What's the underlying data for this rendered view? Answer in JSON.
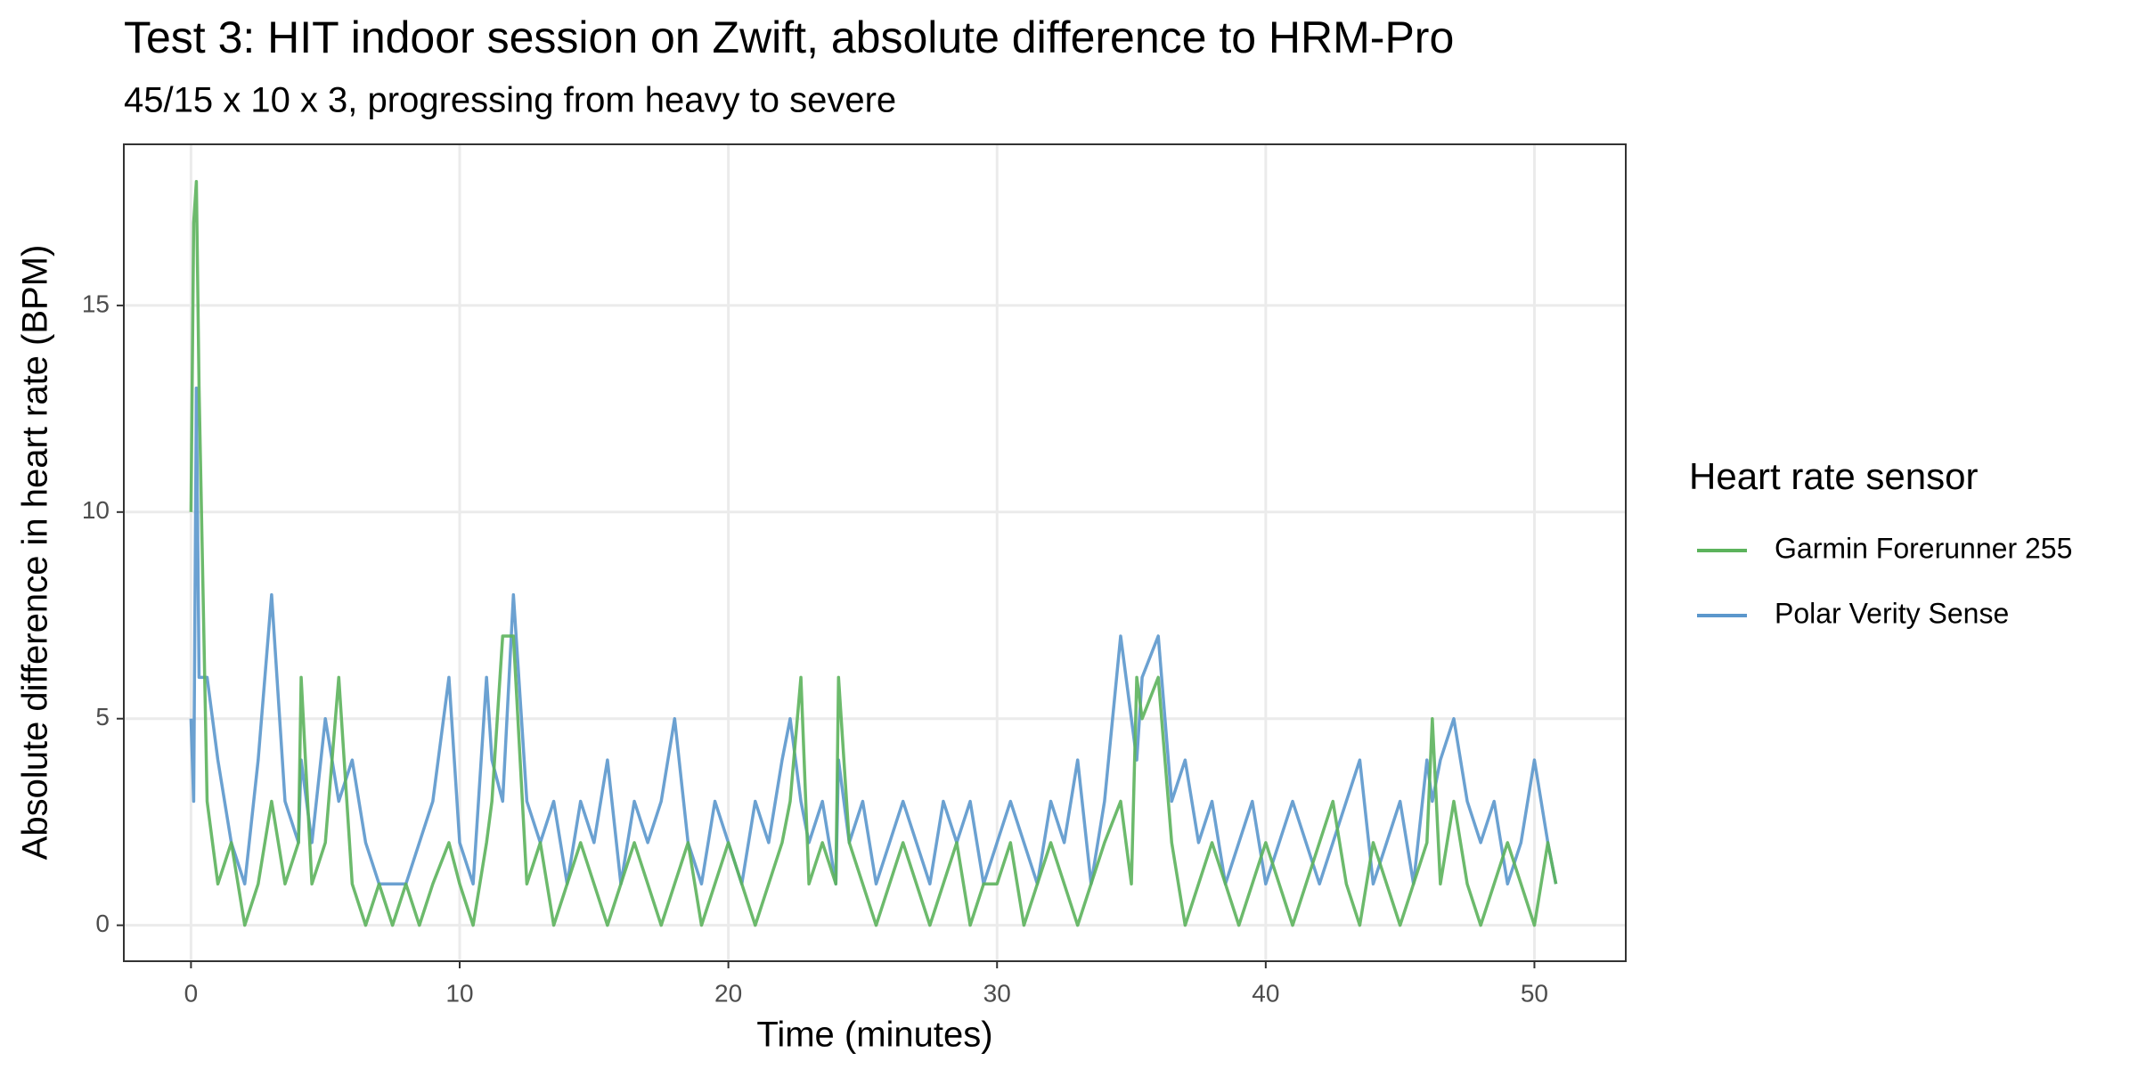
{
  "chart_data": {
    "type": "line",
    "title": "Test 3: HIT indoor session on Zwift, absolute difference to HRM-Pro",
    "subtitle": "45/15 x 10 x 3, progressing from heavy to severe",
    "x_label": "Time (minutes)",
    "y_label": "Absolute difference in heart rate (BPM)",
    "legend_title": "Heart rate sensor",
    "legend_position": "right",
    "grid": true,
    "xlim": [
      -2.5,
      53.4
    ],
    "xticks": [
      0,
      10,
      20,
      30,
      40,
      50
    ],
    "ylim": [
      -0.87,
      18.9
    ],
    "yticks": [
      0,
      5,
      10,
      15
    ],
    "x": [
      0,
      0.1,
      0.2,
      0.3,
      0.6,
      1,
      1.5,
      2,
      2.5,
      3,
      3.5,
      4,
      4.1,
      4.5,
      5,
      5.5,
      6,
      6.5,
      7,
      7.5,
      8,
      8.5,
      9,
      9.6,
      10,
      10.5,
      11,
      11.2,
      11.6,
      12,
      12.5,
      13,
      13.5,
      14,
      14.5,
      15,
      15.5,
      16,
      16.5,
      17,
      17.5,
      18,
      18.5,
      19,
      19.5,
      20,
      20.5,
      21,
      21.5,
      22,
      22.3,
      22.7,
      23,
      23.5,
      24,
      24.1,
      24.5,
      25,
      25.5,
      26,
      26.5,
      27,
      27.5,
      28,
      28.5,
      29,
      29.5,
      30,
      30.5,
      31,
      31.5,
      32,
      32.5,
      33,
      33.5,
      34,
      34.6,
      35,
      35.2,
      35.4,
      36,
      36.5,
      37,
      37.5,
      38,
      38.5,
      39,
      39.5,
      40,
      40.5,
      41,
      41.5,
      42,
      42.5,
      43,
      43.5,
      44,
      44.5,
      45,
      45.5,
      46,
      46.2,
      46.5,
      47,
      47.5,
      48,
      48.5,
      49,
      49.5,
      50,
      50.5,
      50.8
    ],
    "series": [
      {
        "name": "Garmin Forerunner 255",
        "color": "#5cb35c",
        "values": [
          10,
          17,
          18,
          13,
          3,
          1,
          2,
          0,
          1,
          3,
          1,
          2,
          6,
          1,
          2,
          6,
          1,
          0,
          1,
          0,
          1,
          0,
          1,
          2,
          1,
          0,
          2,
          3,
          7,
          7,
          1,
          2,
          0,
          1,
          2,
          1,
          0,
          1,
          2,
          1,
          0,
          1,
          2,
          0,
          1,
          2,
          1,
          0,
          1,
          2,
          3,
          6,
          1,
          2,
          1,
          6,
          2,
          1,
          0,
          1,
          2,
          1,
          0,
          1,
          2,
          0,
          1,
          1,
          2,
          0,
          1,
          2,
          1,
          0,
          1,
          2,
          3,
          1,
          6,
          5,
          6,
          2,
          0,
          1,
          2,
          1,
          0,
          1,
          2,
          1,
          0,
          1,
          2,
          3,
          1,
          0,
          2,
          1,
          0,
          1,
          2,
          5,
          1,
          3,
          1,
          0,
          1,
          2,
          1,
          0,
          2,
          1
        ]
      },
      {
        "name": "Polar Verity Sense",
        "color": "#5b97cc",
        "values": [
          5,
          3,
          13,
          6,
          6,
          4,
          2,
          1,
          4,
          8,
          3,
          2,
          4,
          2,
          5,
          3,
          4,
          2,
          1,
          1,
          1,
          2,
          3,
          6,
          2,
          1,
          6,
          4,
          3,
          8,
          3,
          2,
          3,
          1,
          3,
          2,
          4,
          1,
          3,
          2,
          3,
          5,
          2,
          1,
          3,
          2,
          1,
          3,
          2,
          4,
          5,
          3,
          2,
          3,
          1,
          4,
          2,
          3,
          1,
          2,
          3,
          2,
          1,
          3,
          2,
          3,
          1,
          2,
          3,
          2,
          1,
          3,
          2,
          4,
          1,
          3,
          7,
          5,
          4,
          6,
          7,
          3,
          4,
          2,
          3,
          1,
          2,
          3,
          1,
          2,
          3,
          2,
          1,
          2,
          3,
          4,
          1,
          2,
          3,
          1,
          4,
          3,
          4,
          5,
          3,
          2,
          3,
          1,
          2,
          4,
          2,
          1
        ]
      }
    ]
  }
}
